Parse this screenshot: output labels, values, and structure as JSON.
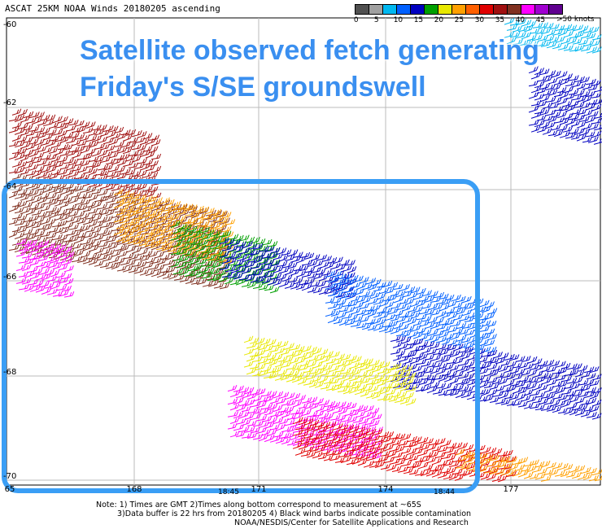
{
  "map": {
    "title": "ASCAT 25KM NOAA Winds 20180205 ascending",
    "y_labels": [
      "-60",
      "-62",
      "-64",
      "-66",
      "-68",
      "-70"
    ],
    "x_labels": [
      "168",
      "171",
      "174",
      "177"
    ],
    "partial_edge_label": "65",
    "time_labels": [
      "18:45",
      "18:44"
    ],
    "grid": true
  },
  "legend": {
    "unit": ">50 knots",
    "ticks": [
      "0",
      "5",
      "10",
      "15",
      "20",
      "25",
      "30",
      "35",
      "40",
      "45"
    ],
    "colors": [
      "#505050",
      "#a0a0a0",
      "#00b8f0",
      "#0060ff",
      "#0000c0",
      "#00a000",
      "#e8e800",
      "#ffa000",
      "#ff6000",
      "#e00000",
      "#a01010",
      "#803020",
      "#ff00ff",
      "#a000d0",
      "#600090"
    ]
  },
  "overlay": {
    "line1": "Satellite observed fetch generating",
    "line2": "Friday's S/SE groundswell",
    "accent": "#3a9ef5"
  },
  "notes": {
    "line1": "Note: 1) Times are GMT 2)Times along bottom correspond to measurement at ~65S",
    "line2": "3)Data buffer is 22 hrs from 20180205 4) Black wind barbs indicate possible contamination",
    "line3": "NOAA/NESDIS/Center for Satellite Applications and Research"
  }
}
